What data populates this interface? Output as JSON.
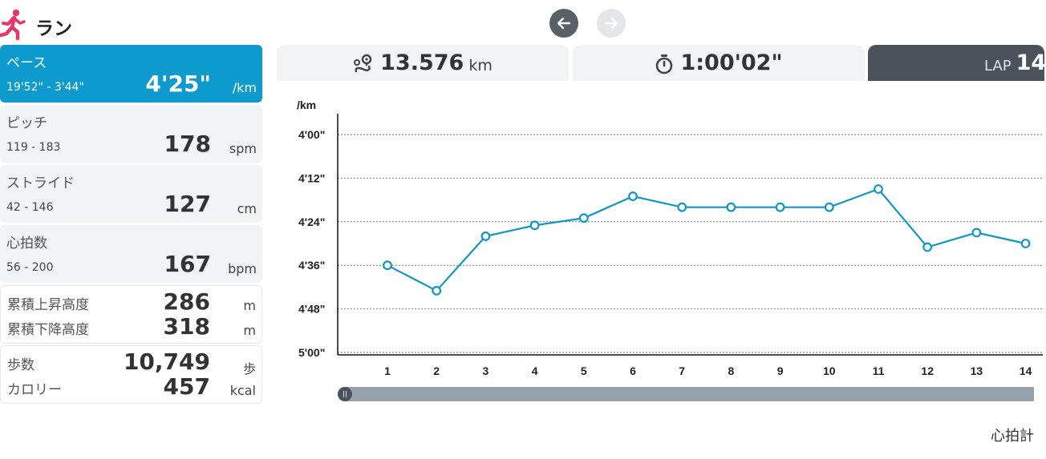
{
  "header": {
    "title": "ラン",
    "icon": "runner-icon",
    "accent_color": "#e8366a"
  },
  "nav": {
    "prev_icon": "arrow-left-icon",
    "next_icon": "arrow-right-icon"
  },
  "metrics": {
    "pace": {
      "label": "ペース",
      "range": "19'52\" - 3'44\"",
      "value": "4'25\"",
      "unit": "/km",
      "active_color": "#0c9bcc"
    },
    "cadence": {
      "label": "ピッチ",
      "range": "119 - 183",
      "value": "178",
      "unit": "spm"
    },
    "stride": {
      "label": "ストライド",
      "range": "42 - 146",
      "value": "127",
      "unit": "cm"
    },
    "heart_rate": {
      "label": "心拍数",
      "range": "56 - 200",
      "value": "167",
      "unit": "bpm"
    },
    "elevation": {
      "ascent_label": "累積上昇高度",
      "ascent_value": "286",
      "ascent_unit": "m",
      "descent_label": "累積下降高度",
      "descent_value": "318",
      "descent_unit": "m"
    },
    "steps": {
      "steps_label": "歩数",
      "steps_value": "10,749",
      "steps_unit": "歩",
      "calories_label": "カロリー",
      "calories_value": "457",
      "calories_unit": "kcal"
    }
  },
  "tabs": {
    "distance": {
      "icon": "route-pin-icon",
      "value": "13.576",
      "unit": "km"
    },
    "time": {
      "icon": "stopwatch-icon",
      "value": "1:00'02\""
    },
    "lap": {
      "label": "LAP",
      "value": "14"
    }
  },
  "chart_data": {
    "type": "line",
    "ylabel": "/km",
    "y_tick_labels": [
      "4'00\"",
      "4'12\"",
      "4'24\"",
      "4'36\"",
      "4'48\"",
      "5'00\""
    ],
    "y_ticks_seconds": [
      240,
      252,
      264,
      276,
      288,
      300
    ],
    "ylim_seconds": [
      240,
      300
    ],
    "y_inverted": true,
    "grid": true,
    "categories": [
      "1",
      "2",
      "3",
      "4",
      "5",
      "6",
      "7",
      "8",
      "9",
      "10",
      "11",
      "12",
      "13",
      "14"
    ],
    "series": [
      {
        "values_seconds": [
          276,
          283,
          268,
          265,
          263,
          257,
          260,
          260,
          260,
          260,
          255,
          271,
          267,
          270
        ],
        "color": "#1196c4"
      }
    ]
  },
  "footer": {
    "text": "心拍計"
  }
}
